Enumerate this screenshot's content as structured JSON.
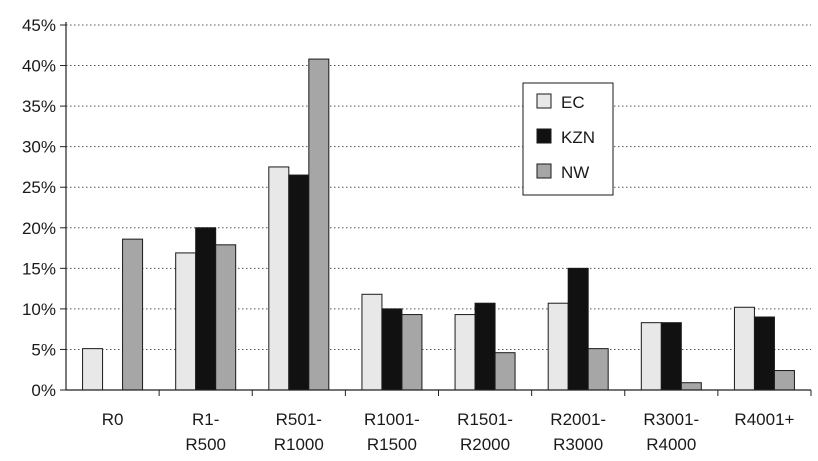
{
  "chart_data": {
    "type": "bar",
    "categories": [
      [
        "R0"
      ],
      [
        "R1-",
        "R500"
      ],
      [
        "R501-",
        "R1000"
      ],
      [
        "R1001-",
        "R1500"
      ],
      [
        "R1501-",
        "R2000"
      ],
      [
        "R2001-",
        "R3000"
      ],
      [
        "R3001-",
        "R4000"
      ],
      [
        "R4001+"
      ]
    ],
    "series": [
      {
        "name": "EC",
        "color": "#e8e8e8",
        "values": [
          5.1,
          16.9,
          27.5,
          11.8,
          9.3,
          10.7,
          8.3,
          10.2
        ]
      },
      {
        "name": "KZN",
        "color": "#111111",
        "values": [
          0,
          20.0,
          26.5,
          10.0,
          10.7,
          15.0,
          8.3,
          9.0
        ]
      },
      {
        "name": "NW",
        "color": "#a6a6a6",
        "values": [
          18.6,
          17.9,
          40.8,
          9.3,
          4.6,
          5.1,
          0.9,
          2.4
        ]
      }
    ],
    "y_ticks": [
      "0%",
      "5%",
      "10%",
      "15%",
      "20%",
      "25%",
      "30%",
      "35%",
      "40%",
      "45%"
    ],
    "ylim": [
      0,
      45
    ],
    "y_unit": "%",
    "grid": "horizontal dotted",
    "legend_position": "inside upper right",
    "title": "",
    "xlabel": "",
    "ylabel": ""
  }
}
